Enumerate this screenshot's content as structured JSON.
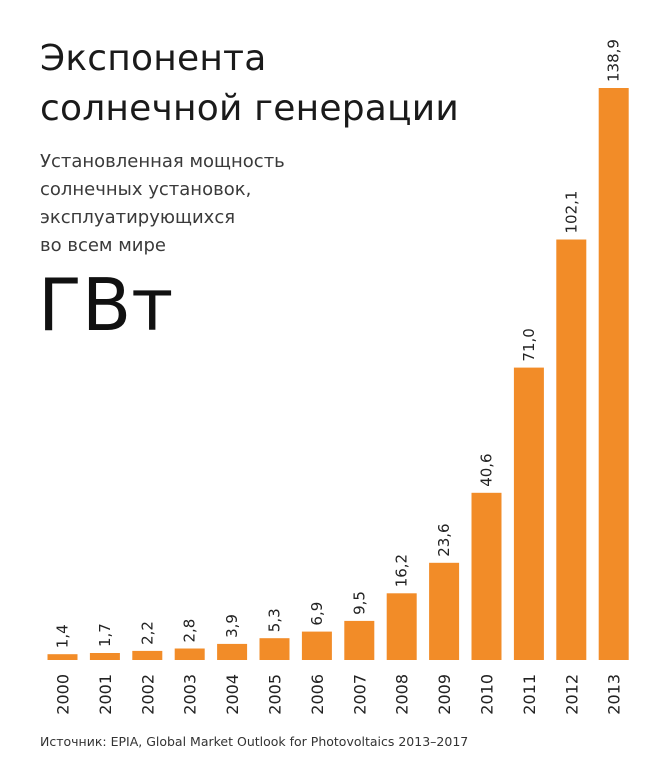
{
  "title_lines": [
    "Экспонента",
    "солнечной генерации"
  ],
  "subtitle_lines": [
    "Установленная мощность",
    "солнечных установок,",
    "эксплуатирующихся",
    "во всем мире"
  ],
  "unit": "ГВт",
  "source": "Источник: EPIA, Global Market Outlook for Photovoltaics 2013–2017",
  "chart_data": {
    "type": "bar",
    "categories": [
      "2000",
      "2001",
      "2002",
      "2003",
      "2004",
      "2005",
      "2006",
      "2007",
      "2008",
      "2009",
      "2010",
      "2011",
      "2012",
      "2013"
    ],
    "values": [
      1.4,
      1.7,
      2.2,
      2.8,
      3.9,
      5.3,
      6.9,
      9.5,
      16.2,
      23.6,
      40.6,
      71.0,
      102.1,
      138.9
    ],
    "data_labels": [
      "1,4",
      "1,7",
      "2,2",
      "2,8",
      "3,9",
      "5,3",
      "6,9",
      "9,5",
      "16,2",
      "23,6",
      "40,6",
      "71,0",
      "102,1",
      "138,9"
    ],
    "title": "Экспонента солнечной генерации",
    "ylabel": "ГВт",
    "ylim": [
      0,
      138.9
    ],
    "bar_color": "#F28C28",
    "grid": false,
    "legend": "none"
  }
}
